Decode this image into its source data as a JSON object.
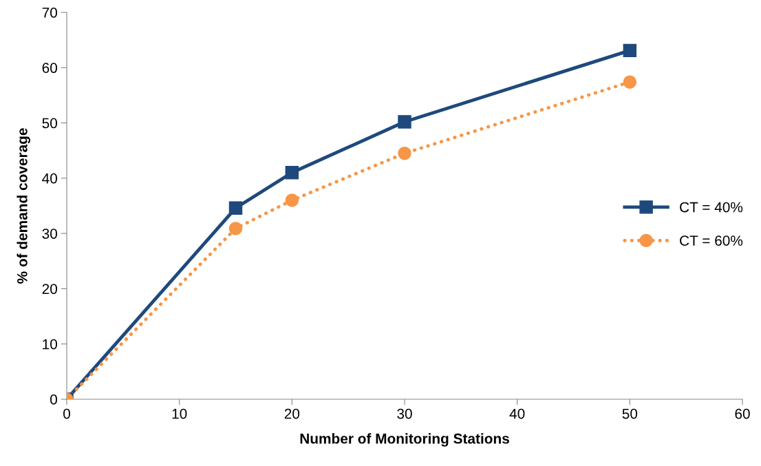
{
  "chart_data": {
    "type": "line",
    "xlabel": "Number of Monitoring Stations",
    "ylabel": "% of demand coverage",
    "x": [
      0,
      15,
      20,
      30,
      50
    ],
    "series": [
      {
        "name": "CT = 40%",
        "color": "#1f497d",
        "values": [
          0,
          34.6,
          41.0,
          50.2,
          63.1
        ],
        "marker": "square",
        "line_style": "solid"
      },
      {
        "name": "CT = 60%",
        "color": "#f79646",
        "values": [
          0,
          30.9,
          36.0,
          44.5,
          57.4
        ],
        "marker": "circle",
        "line_style": "dotted"
      }
    ],
    "xlim": [
      0,
      60
    ],
    "xticks": [
      0,
      10,
      20,
      30,
      40,
      50,
      60
    ],
    "ylim": [
      0,
      70
    ],
    "yticks": [
      0,
      10,
      20,
      30,
      40,
      50,
      60,
      70
    ],
    "grid": false,
    "legend": "right"
  }
}
